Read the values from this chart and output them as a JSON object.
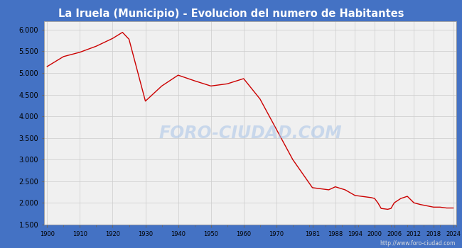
{
  "title": "La Iruela (Municipio) - Evolucion del numero de Habitantes",
  "title_bg": "#4472c4",
  "title_color": "white",
  "line_color": "#cc0000",
  "fig_bg": "#4472c4",
  "plot_bg": "#f0f0f0",
  "inner_bg": "#f0f0f0",
  "grid_color": "#cccccc",
  "watermark": "FORO-CIUDAD.COM",
  "url": "http://www.foro-ciudad.com",
  "data": [
    [
      1900,
      5150
    ],
    [
      1905,
      5380
    ],
    [
      1910,
      5480
    ],
    [
      1915,
      5620
    ],
    [
      1920,
      5800
    ],
    [
      1923,
      5940
    ],
    [
      1925,
      5780
    ],
    [
      1930,
      4350
    ],
    [
      1935,
      4700
    ],
    [
      1940,
      4950
    ],
    [
      1945,
      4820
    ],
    [
      1950,
      4700
    ],
    [
      1955,
      4750
    ],
    [
      1960,
      4870
    ],
    [
      1965,
      4400
    ],
    [
      1970,
      3700
    ],
    [
      1975,
      3000
    ],
    [
      1981,
      2350
    ],
    [
      1986,
      2300
    ],
    [
      1988,
      2370
    ],
    [
      1991,
      2300
    ],
    [
      1994,
      2170
    ],
    [
      1996,
      2150
    ],
    [
      1999,
      2120
    ],
    [
      2000,
      2100
    ],
    [
      2001,
      2000
    ],
    [
      2002,
      1870
    ],
    [
      2003,
      1860
    ],
    [
      2004,
      1850
    ],
    [
      2005,
      1870
    ],
    [
      2006,
      2000
    ],
    [
      2008,
      2100
    ],
    [
      2010,
      2150
    ],
    [
      2012,
      2000
    ],
    [
      2014,
      1960
    ],
    [
      2016,
      1930
    ],
    [
      2018,
      1900
    ],
    [
      2020,
      1900
    ],
    [
      2022,
      1880
    ],
    [
      2024,
      1880
    ]
  ],
  "xticks": [
    1900,
    1910,
    1920,
    1930,
    1940,
    1950,
    1960,
    1970,
    1981,
    1988,
    1994,
    2000,
    2006,
    2012,
    2018,
    2024
  ],
  "yticks": [
    1500,
    2000,
    2500,
    3000,
    3500,
    4000,
    4500,
    5000,
    5500,
    6000
  ],
  "ylim": [
    1500,
    6200
  ],
  "xlim": [
    1899,
    2025
  ]
}
